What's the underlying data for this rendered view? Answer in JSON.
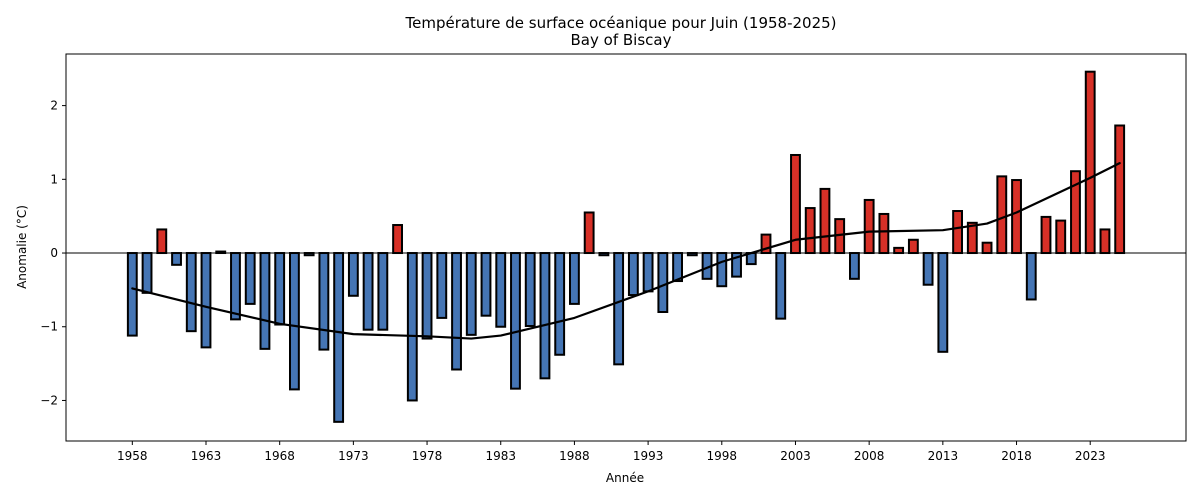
{
  "chart_data": {
    "type": "bar",
    "title": "Température de surface océanique pour Juin (1958-2025)",
    "subtitle": "Bay of Biscay",
    "xlabel": "Année",
    "ylabel": "Anomalie (°C)",
    "xlim": [
      1953.5,
      2029.5
    ],
    "ylim": [
      -2.55,
      2.7
    ],
    "xticks": [
      1958,
      1963,
      1968,
      1973,
      1978,
      1983,
      1988,
      1993,
      1998,
      2003,
      2008,
      2013,
      2018,
      2023
    ],
    "yticks": [
      -2,
      -1,
      0,
      1,
      2
    ],
    "grid": false,
    "colors": {
      "positive": "#d73027",
      "negative": "#4575b4",
      "edge": "#000000",
      "trend": "#000000",
      "zero_line": "#000000"
    },
    "x": [
      1958,
      1959,
      1960,
      1961,
      1962,
      1963,
      1964,
      1965,
      1966,
      1967,
      1968,
      1969,
      1970,
      1971,
      1972,
      1973,
      1974,
      1975,
      1976,
      1977,
      1978,
      1979,
      1980,
      1981,
      1982,
      1983,
      1984,
      1985,
      1986,
      1987,
      1988,
      1989,
      1990,
      1991,
      1992,
      1993,
      1994,
      1995,
      1996,
      1997,
      1998,
      1999,
      2000,
      2001,
      2002,
      2003,
      2004,
      2005,
      2006,
      2007,
      2008,
      2009,
      2010,
      2011,
      2012,
      2013,
      2014,
      2015,
      2016,
      2017,
      2018,
      2019,
      2020,
      2021,
      2022,
      2023,
      2024,
      2025
    ],
    "values": [
      -1.12,
      -0.54,
      0.32,
      -0.16,
      -1.06,
      -1.28,
      0.02,
      -0.9,
      -0.69,
      -1.3,
      -0.97,
      -1.85,
      -0.03,
      -1.31,
      -2.29,
      -0.58,
      -1.04,
      -1.04,
      0.38,
      -2.0,
      -1.16,
      -0.88,
      -1.58,
      -1.11,
      -0.85,
      -1.0,
      -1.84,
      -0.99,
      -1.7,
      -1.38,
      -0.69,
      0.55,
      -0.03,
      -1.51,
      -0.57,
      -0.52,
      -0.8,
      -0.38,
      -0.03,
      -0.35,
      -0.45,
      -0.32,
      -0.15,
      0.25,
      -0.89,
      1.33,
      0.61,
      0.87,
      0.46,
      -0.35,
      0.72,
      0.53,
      0.07,
      0.18,
      -0.43,
      -1.34,
      0.57,
      0.41,
      0.14,
      1.04,
      0.99,
      -0.63,
      0.49,
      0.44,
      1.11,
      2.46,
      0.32,
      1.73
    ],
    "trend": {
      "x": [
        1958,
        1963,
        1968,
        1973,
        1978,
        1981,
        1983,
        1988,
        1993,
        1998,
        2003,
        2008,
        2013,
        2016,
        2018,
        2023,
        2025
      ],
      "y": [
        -0.48,
        -0.73,
        -0.96,
        -1.1,
        -1.13,
        -1.16,
        -1.12,
        -0.88,
        -0.52,
        -0.12,
        0.18,
        0.29,
        0.31,
        0.4,
        0.55,
        1.02,
        1.22
      ]
    }
  }
}
